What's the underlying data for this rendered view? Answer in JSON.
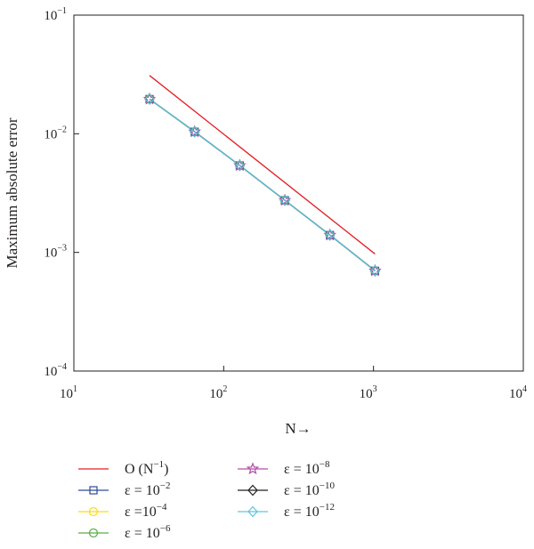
{
  "chart_data": {
    "type": "line",
    "xscale": "log",
    "yscale": "log",
    "xlim": [
      10,
      10000
    ],
    "ylim": [
      0.0001,
      0.1
    ],
    "xlabel": "N→",
    "ylabel": "Maximum absolute error",
    "grid": false,
    "legend_position": "bottom",
    "x_ticks": [
      {
        "value": 10,
        "base": "10",
        "exp": "1"
      },
      {
        "value": 100,
        "base": "10",
        "exp": "2"
      },
      {
        "value": 1000,
        "base": "10",
        "exp": "3"
      },
      {
        "value": 10000,
        "base": "10",
        "exp": "4"
      }
    ],
    "y_ticks": [
      {
        "value": 0.0001,
        "base": "10",
        "exp": "−4"
      },
      {
        "value": 0.001,
        "base": "10",
        "exp": "−3"
      },
      {
        "value": 0.01,
        "base": "10",
        "exp": "−2"
      },
      {
        "value": 0.1,
        "base": "10",
        "exp": "−1"
      }
    ],
    "x": [
      32,
      64,
      128,
      256,
      512,
      1024
    ],
    "reference": {
      "label_main": "O (N",
      "label_sup": "−1",
      "label_end": ")",
      "color": "#e31e24",
      "x": [
        32,
        1024
      ],
      "values": [
        0.031,
        0.00097
      ]
    },
    "series": [
      {
        "label_main": "ε = 10",
        "label_sup": "−2",
        "color": "#2e4a9a",
        "marker": "square",
        "values": [
          0.0196,
          0.0104,
          0.0054,
          0.00275,
          0.0014,
          0.0007
        ]
      },
      {
        "label_main": "ε =10",
        "label_sup": "−4",
        "color": "#ffdd00",
        "marker": "circle",
        "values": [
          0.0196,
          0.0104,
          0.0054,
          0.00275,
          0.0014,
          0.0007
        ]
      },
      {
        "label_main": "ε = 10",
        "label_sup": "−6",
        "color": "#5aac44",
        "marker": "circle",
        "values": [
          0.0196,
          0.0104,
          0.0054,
          0.00275,
          0.0014,
          0.0007
        ]
      },
      {
        "label_main": "ε = 10",
        "label_sup": "−8",
        "color": "#b04fa6",
        "marker": "star",
        "values": [
          0.0196,
          0.0104,
          0.0054,
          0.00275,
          0.0014,
          0.0007
        ]
      },
      {
        "label_main": "ε = 10",
        "label_sup": "−10",
        "color": "#231f20",
        "marker": "diamond",
        "values": [
          0.0196,
          0.0104,
          0.0054,
          0.00275,
          0.0014,
          0.0007
        ]
      },
      {
        "label_main": "ε = 10",
        "label_sup": "−12",
        "color": "#5bc5df",
        "marker": "diamond",
        "values": [
          0.0196,
          0.0104,
          0.0054,
          0.00275,
          0.0014,
          0.0007
        ]
      }
    ]
  }
}
